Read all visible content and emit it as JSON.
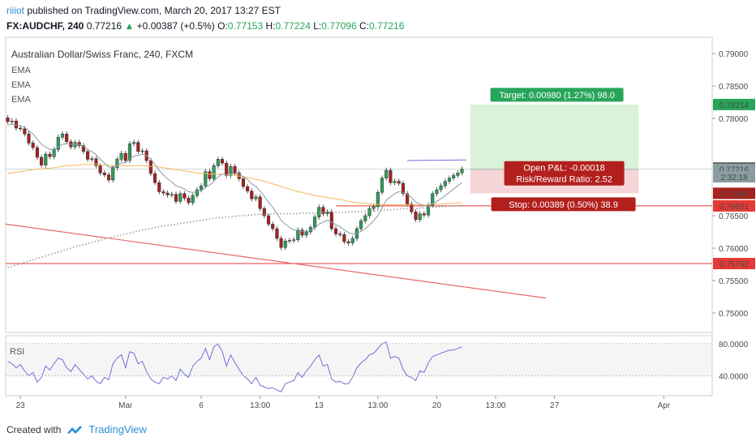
{
  "header": {
    "user": "riiiot",
    "published_text": " published on TradingView.com, March 20, 2017 13:27 EST",
    "symbol": "FX:AUDCHF, 240",
    "price": "0.77216",
    "change": "+0.00387 (+0.5%)",
    "open_label": "O:",
    "open": "0.77153",
    "high_label": "H:",
    "high": "0.77224",
    "low_label": "L:",
    "low": "0.77096",
    "close_label": "C:",
    "close": "0.77216"
  },
  "legend": {
    "title": "Australian Dollar/Swiss Franc, 240, FXCM",
    "ema1": "EMA",
    "ema2": "EMA",
    "ema3": "EMA"
  },
  "rsi_label": "RSI",
  "footer": {
    "created_with": "Created with",
    "brand": "TradingView"
  },
  "colors": {
    "up": "#2e9d5c",
    "down": "#a8211d",
    "target_zone": "#d9f2d9",
    "stop_zone": "#f6d5d8",
    "ema_fast": "#8a9ba8",
    "ema_slow": "#f5b85a",
    "ema_long": "#9e9e9e",
    "rsi": "#6f6fd9",
    "trendline": "#e8696a",
    "target_label": "#27a55a",
    "stop_label": "#b2201e",
    "level_red": "#e53935"
  },
  "chart_data": {
    "type": "candlestick",
    "symbol": "AUDCHF",
    "interval": "240",
    "y_ticks": [
      0.79,
      0.785,
      0.78,
      0.765,
      0.76,
      0.755,
      0.75
    ],
    "y_tick_labels": [
      "0.79000",
      "0.78500",
      "0.78000",
      "0.76500",
      "0.76000",
      "0.75500",
      "0.75000"
    ],
    "ylim": [
      0.747,
      0.7925
    ],
    "x_tick_labels": [
      "23",
      "Mar",
      "6",
      "13:00",
      "13",
      "13:00",
      "20",
      "13:00",
      "27",
      "Apr"
    ],
    "x_tick_bars": [
      3,
      28,
      46,
      60,
      74,
      88,
      102,
      116,
      130,
      156
    ],
    "num_slots": 168,
    "closes": [
      0.7795,
      0.7796,
      0.7785,
      0.7784,
      0.7776,
      0.7762,
      0.7755,
      0.774,
      0.7728,
      0.7745,
      0.7741,
      0.7752,
      0.7771,
      0.7776,
      0.7764,
      0.7756,
      0.7763,
      0.7758,
      0.7749,
      0.7737,
      0.7738,
      0.7727,
      0.7716,
      0.7713,
      0.7705,
      0.7724,
      0.7737,
      0.7746,
      0.7735,
      0.7761,
      0.7763,
      0.7749,
      0.775,
      0.7735,
      0.7715,
      0.7701,
      0.7687,
      0.7685,
      0.7682,
      0.7683,
      0.7672,
      0.7684,
      0.7677,
      0.767,
      0.7681,
      0.769,
      0.7696,
      0.7718,
      0.7707,
      0.7727,
      0.7737,
      0.7731,
      0.7712,
      0.7726,
      0.7716,
      0.7707,
      0.7695,
      0.7688,
      0.7676,
      0.7679,
      0.7661,
      0.765,
      0.7637,
      0.763,
      0.7615,
      0.7601,
      0.7611,
      0.7612,
      0.7613,
      0.7628,
      0.762,
      0.7625,
      0.7632,
      0.7648,
      0.7663,
      0.7653,
      0.7656,
      0.763,
      0.7622,
      0.7621,
      0.761,
      0.7608,
      0.7615,
      0.763,
      0.7642,
      0.765,
      0.7661,
      0.7664,
      0.7686,
      0.7708,
      0.772,
      0.7701,
      0.7703,
      0.77,
      0.7684,
      0.7668,
      0.7656,
      0.7644,
      0.7653,
      0.7651,
      0.7666,
      0.7684,
      0.769,
      0.7696,
      0.7703,
      0.7708,
      0.7712,
      0.7716,
      0.7722
    ],
    "ema_fast": [
      0.779,
      0.7791,
      0.779,
      0.7789,
      0.7786,
      0.7781,
      0.7776,
      0.7768,
      0.776,
      0.7756,
      0.7752,
      0.7752,
      0.7756,
      0.776,
      0.7761,
      0.776,
      0.776,
      0.776,
      0.7757,
      0.7752,
      0.7749,
      0.7744,
      0.7737,
      0.7731,
      0.7725,
      0.7725,
      0.7727,
      0.7731,
      0.7732,
      0.7737,
      0.7742,
      0.7743,
      0.7745,
      0.7743,
      0.7737,
      0.7729,
      0.772,
      0.7713,
      0.7707,
      0.7702,
      0.7696,
      0.7694,
      0.7691,
      0.7687,
      0.7686,
      0.7687,
      0.7688,
      0.7694,
      0.7697,
      0.7703,
      0.771,
      0.7714,
      0.7713,
      0.7715,
      0.7715,
      0.7714,
      0.771,
      0.7706,
      0.7699,
      0.7695,
      0.7688,
      0.768,
      0.7671,
      0.7663,
      0.7653,
      0.7643,
      0.7637,
      0.7632,
      0.7628,
      0.7628,
      0.7626,
      0.7626,
      0.7627,
      0.7631,
      0.7637,
      0.764,
      0.7643,
      0.764,
      0.7636,
      0.7633,
      0.7628,
      0.7624,
      0.7622,
      0.7623,
      0.7626,
      0.763,
      0.7636,
      0.7642,
      0.765,
      0.7662,
      0.7674,
      0.7679,
      0.7684,
      0.7687,
      0.7686,
      0.7683,
      0.7678,
      0.7671,
      0.7668,
      0.7665,
      0.7665,
      0.7668,
      0.7672,
      0.7676,
      0.7681,
      0.7686,
      0.7691,
      0.7696,
      0.7701
    ],
    "ema_slow": [
      0.7715,
      0.7716,
      0.7717,
      0.7718,
      0.7719,
      0.772,
      0.7721,
      0.7722,
      0.7722,
      0.7723,
      0.7723,
      0.7724,
      0.7725,
      0.7726,
      0.7727,
      0.7727,
      0.7728,
      0.7728,
      0.7729,
      0.7729,
      0.7729,
      0.7729,
      0.7729,
      0.7728,
      0.7728,
      0.7727,
      0.7727,
      0.7727,
      0.7727,
      0.7727,
      0.7727,
      0.7727,
      0.7727,
      0.7727,
      0.7726,
      0.7726,
      0.7725,
      0.7724,
      0.7723,
      0.7722,
      0.7721,
      0.772,
      0.7719,
      0.7718,
      0.7717,
      0.7716,
      0.7715,
      0.7715,
      0.7714,
      0.7714,
      0.7714,
      0.7714,
      0.7713,
      0.7713,
      0.7712,
      0.7711,
      0.771,
      0.7709,
      0.7708,
      0.7706,
      0.7705,
      0.7703,
      0.7701,
      0.7699,
      0.7697,
      0.7695,
      0.7693,
      0.7691,
      0.7689,
      0.7687,
      0.7686,
      0.7684,
      0.7683,
      0.7681,
      0.768,
      0.7679,
      0.7678,
      0.7677,
      0.7676,
      0.7675,
      0.7674,
      0.7672,
      0.7671,
      0.767,
      0.7669,
      0.7669,
      0.7668,
      0.7668,
      0.7667,
      0.7667,
      0.7667,
      0.7667,
      0.7667,
      0.7667,
      0.7667,
      0.7667,
      0.7667,
      0.7667,
      0.7667,
      0.7667,
      0.7667,
      0.7668,
      0.7668,
      0.7668,
      0.7669,
      0.7669,
      0.7669,
      0.767,
      0.767
    ],
    "ema_long": [
      0.757,
      0.7572,
      0.7574,
      0.7576,
      0.7578,
      0.758,
      0.7582,
      0.7584,
      0.7586,
      0.7588,
      0.759,
      0.7592,
      0.7594,
      0.7596,
      0.7598,
      0.76,
      0.7602,
      0.7604,
      0.7605,
      0.7607,
      0.7609,
      0.7611,
      0.7612,
      0.7614,
      0.7616,
      0.7617,
      0.7619,
      0.762,
      0.7622,
      0.7623,
      0.7625,
      0.7626,
      0.7628,
      0.7629,
      0.763,
      0.7632,
      0.7633,
      0.7634,
      0.7635,
      0.7636,
      0.7637,
      0.7638,
      0.7639,
      0.764,
      0.7641,
      0.7642,
      0.7643,
      0.7644,
      0.7645,
      0.7646,
      0.7647,
      0.7647,
      0.7648,
      0.7649,
      0.7649,
      0.765,
      0.765,
      0.7651,
      0.7651,
      0.7652,
      0.7652,
      0.7652,
      0.7652,
      0.7653,
      0.7653,
      0.7653,
      0.7653,
      0.7653,
      0.7653,
      0.7653,
      0.7654,
      0.7654,
      0.7654,
      0.7654,
      0.7655,
      0.7655,
      0.7655,
      0.7655,
      0.7655,
      0.7655,
      0.7655,
      0.7656,
      0.7656,
      0.7656,
      0.7656,
      0.7657,
      0.7657,
      0.7657,
      0.7658,
      0.7658,
      0.7659,
      0.7659,
      0.766,
      0.766,
      0.7661,
      0.7661,
      0.7661,
      0.7661,
      0.7662,
      0.7662,
      0.7662,
      0.7663,
      0.7663,
      0.7664,
      0.7664,
      0.7665,
      0.7665,
      0.7665,
      0.7666
    ],
    "rsi": [
      58,
      55,
      50,
      54,
      46,
      40,
      44,
      32,
      38,
      52,
      47,
      55,
      62,
      60,
      50,
      45,
      54,
      48,
      42,
      36,
      40,
      33,
      30,
      38,
      35,
      55,
      62,
      66,
      50,
      70,
      68,
      55,
      58,
      45,
      36,
      32,
      30,
      38,
      36,
      40,
      34,
      48,
      42,
      38,
      52,
      58,
      62,
      74,
      60,
      76,
      80,
      70,
      52,
      66,
      56,
      48,
      40,
      36,
      30,
      38,
      28,
      26,
      24,
      25,
      22,
      20,
      30,
      32,
      34,
      44,
      38,
      46,
      52,
      60,
      66,
      52,
      54,
      36,
      32,
      33,
      30,
      30,
      38,
      50,
      56,
      60,
      66,
      68,
      74,
      80,
      82,
      62,
      64,
      62,
      48,
      40,
      38,
      34,
      46,
      44,
      56,
      64,
      66,
      68,
      70,
      72,
      72,
      74,
      76
    ],
    "rsi_ticks": [
      80,
      40
    ],
    "rsi_tick_labels": [
      "80.0000",
      "40.0000"
    ],
    "rsi_lim": [
      15,
      90
    ],
    "levels": [
      {
        "label": "0.78214",
        "value": 0.78214,
        "kind": "target"
      },
      {
        "label": "0.77234",
        "value": 0.77234,
        "kind": "high"
      },
      {
        "label": "0.77216",
        "value": 0.77216,
        "kind": "price"
      },
      {
        "label": "2:32:18",
        "value": 0.771,
        "kind": "timer"
      },
      {
        "label": "0.76845",
        "value": 0.76845,
        "kind": "stop_edge"
      },
      {
        "label": "0.76651",
        "value": 0.76651,
        "kind": "stop"
      },
      {
        "label": "0.75762",
        "value": 0.75762,
        "kind": "support"
      }
    ],
    "position": {
      "entry": 0.77216,
      "target": 0.78214,
      "stop": 0.76845,
      "target_text": "Target: 0.00980 (1.27%) 98.0",
      "stop_text": "Stop: 0.00389 (0.50%) 38.9",
      "pl_text": "Open P&L: -0.00018",
      "rr_text": "Risk/Reward Ratio: 2.52"
    }
  }
}
